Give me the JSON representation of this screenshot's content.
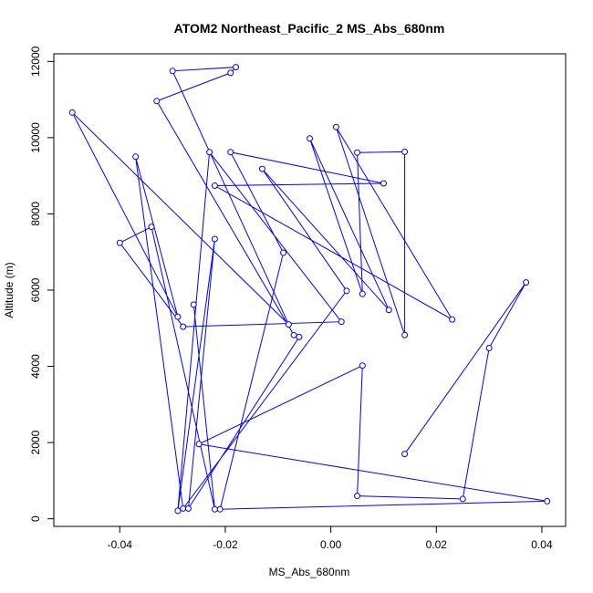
{
  "chart_data": {
    "type": "line",
    "title": "ATOM2 Northeast_Pacific_2 MS_Abs_680nm",
    "xlabel": "MS_Abs_680nm",
    "ylabel": "Altitude (m)",
    "xlim": [
      -0.0525,
      0.0445
    ],
    "ylim": [
      -200,
      12200
    ],
    "xticks": [
      -0.04,
      -0.02,
      0.0,
      0.02,
      0.04
    ],
    "xtick_labels": [
      "-0.04",
      "-0.02",
      "0.00",
      "0.02",
      "0.04"
    ],
    "yticks": [
      0,
      2000,
      4000,
      6000,
      8000,
      10000,
      12000
    ],
    "ytick_labels": [
      "0",
      "2000",
      "4000",
      "6000",
      "8000",
      "10000",
      "12000"
    ],
    "marker": "open-circle",
    "line_color": "#0000ff",
    "grid": false,
    "legend": "none",
    "series": [
      {
        "x": [
          0.014,
          0.037,
          0.03,
          0.025,
          0.005,
          0.006,
          -0.025,
          0.041,
          -0.021,
          -0.009,
          -0.019,
          0.01,
          -0.022,
          0.023,
          0.001,
          0.014,
          0.014,
          0.005,
          0.006,
          -0.004,
          0.011,
          -0.013,
          0.003,
          -0.028,
          -0.037,
          -0.029,
          -0.049,
          -0.008,
          -0.03,
          -0.018,
          -0.019,
          -0.033,
          -0.007,
          -0.006,
          -0.027,
          -0.022,
          -0.029,
          -0.023,
          0.002,
          -0.028,
          -0.04,
          -0.034,
          -0.022,
          -0.026
        ],
        "y": [
          1700,
          6200,
          4480,
          520,
          600,
          4020,
          1960,
          460,
          250,
          6980,
          9620,
          8800,
          8740,
          5230,
          10280,
          4820,
          9630,
          9610,
          5900,
          9980,
          5480,
          9180,
          5980,
          270,
          9500,
          5300,
          10660,
          5100,
          11750,
          11850,
          11700,
          10960,
          4820,
          4770,
          270,
          7340,
          210,
          9620,
          5170,
          5040,
          7240,
          7660,
          250,
          5620
        ]
      }
    ]
  }
}
